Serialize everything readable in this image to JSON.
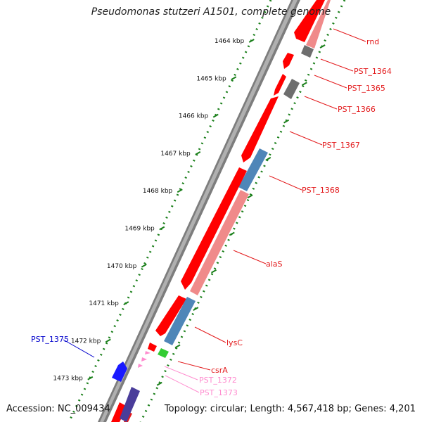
{
  "title": "Pseudomonas stutzeri A1501, complete genome",
  "accession_text": "Accession: NC_009434",
  "summary_text": "Topology: circular; Length: 4,567,418 bp; Genes: 4,201",
  "ruler": {
    "ticks": [
      "1464 kbp",
      "1465 kbp",
      "1466 kbp",
      "1467 kbp",
      "1468 kbp",
      "1469 kbp",
      "1470 kbp",
      "1471 kbp",
      "1472 kbp",
      "1473 kbp"
    ]
  },
  "genes": [
    {
      "name": "rnd",
      "color": "#e31a1c"
    },
    {
      "name": "PST_1364",
      "color": "#e31a1c"
    },
    {
      "name": "PST_1365",
      "color": "#e31a1c"
    },
    {
      "name": "PST_1366",
      "color": "#e31a1c"
    },
    {
      "name": "PST_1367",
      "color": "#e31a1c"
    },
    {
      "name": "PST_1368",
      "color": "#e31a1c"
    },
    {
      "name": "alaS",
      "color": "#e31a1c"
    },
    {
      "name": "lysC",
      "color": "#e31a1c"
    },
    {
      "name": "csrA",
      "color": "#e31a1c"
    },
    {
      "name": "PST_1372",
      "color": "#ff8ccf"
    },
    {
      "name": "PST_1373",
      "color": "#ff8ccf"
    },
    {
      "name": "PST_1375",
      "color": "#0000cc"
    }
  ],
  "colors": {
    "cds_forward": "#ff0000",
    "cds_light": "#f08a8a",
    "gene_blue": "#4f86b8",
    "gene_gray": "#707070",
    "gene_green": "#33cc33",
    "gene_pink": "#ff8ccf",
    "gene_blue_dark": "#1a1aff",
    "backbone": "#808080",
    "ruler_dots": "#1a7f1a"
  }
}
